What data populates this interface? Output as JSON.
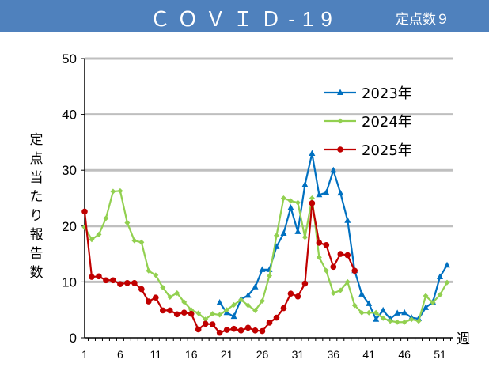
{
  "header": {
    "title": "ＣＯＶＩＤ-19",
    "subtitle": "定点数９"
  },
  "chart_data": {
    "type": "line",
    "title": "ＣＯＶＩＤ-19",
    "ylabel": "定点当たり報告数",
    "xlabel": "週",
    "ylim": [
      0,
      50
    ],
    "yticks": [
      0,
      10,
      20,
      30,
      40,
      50
    ],
    "xlim": [
      1,
      52
    ],
    "xticks": [
      1,
      6,
      11,
      16,
      21,
      26,
      31,
      36,
      41,
      46,
      51
    ],
    "grid": true,
    "legend": "top-right",
    "series": [
      {
        "name": "2023年",
        "color": "#0070c0",
        "marker": "triangle",
        "start_week": 20,
        "values": [
          6.3,
          4.5,
          3.8,
          6.9,
          7.6,
          9.1,
          12.2,
          12.2,
          16.3,
          18.7,
          23.3,
          19.0,
          27.4,
          33.0,
          25.6,
          26.0,
          30.0,
          25.9,
          21.0,
          12.0,
          7.8,
          6.1,
          3.3,
          4.9,
          3.4,
          4.4,
          4.5,
          3.6,
          3.4,
          5.4,
          6.4,
          10.9,
          13.0
        ]
      },
      {
        "name": "2024年",
        "color": "#92d050",
        "marker": "diamond",
        "start_week": 1,
        "values": [
          19.8,
          17.6,
          18.5,
          21.4,
          26.2,
          26.3,
          20.6,
          17.4,
          17.1,
          12.0,
          11.2,
          9.0,
          7.3,
          8.0,
          6.4,
          5.0,
          4.4,
          3.3,
          4.3,
          4.1,
          5.0,
          5.9,
          6.8,
          5.8,
          4.9,
          6.6,
          11.1,
          18.3,
          25.0,
          24.5,
          24.2,
          18.0,
          25.0,
          14.4,
          12.0,
          8.0,
          8.5,
          10.0,
          5.8,
          4.5,
          4.5,
          4.5,
          3.5,
          3.0,
          2.8,
          2.8,
          3.3,
          3.0,
          7.5,
          6.3,
          7.7,
          9.9
        ]
      },
      {
        "name": "2025年",
        "color": "#c00000",
        "marker": "circle",
        "start_week": 1,
        "values": [
          22.6,
          10.9,
          11.0,
          10.3,
          10.3,
          9.6,
          9.8,
          9.8,
          8.7,
          6.5,
          7.2,
          4.9,
          4.9,
          4.2,
          4.5,
          4.3,
          1.5,
          2.5,
          2.4,
          0.9,
          1.4,
          1.6,
          1.3,
          1.8,
          1.3,
          1.2,
          2.7,
          3.6,
          5.3,
          7.9,
          7.4,
          9.7,
          24.1,
          17.0,
          16.6,
          12.7,
          15.0,
          14.8,
          12.0
        ]
      }
    ]
  }
}
